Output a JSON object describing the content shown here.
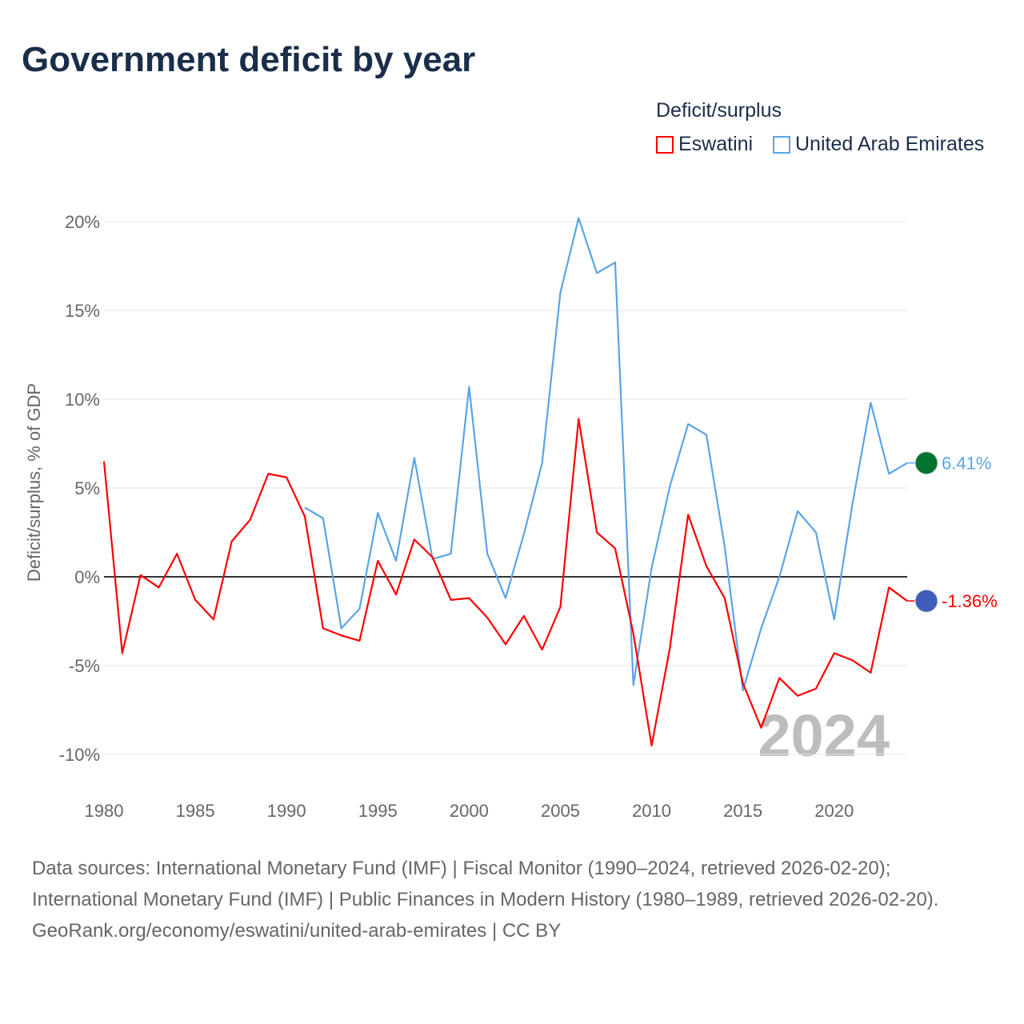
{
  "title": "Government deficit by year",
  "legend_title": "Deficit/surplus",
  "year_watermark": "2024",
  "sources": {
    "line1": "Data sources: International Monetary Fund (IMF) | Fiscal Monitor (1990–2024, retrieved 2026-02-20); International Monetary Fund (IMF) | Public Finances in Modern History (1980–1989, retrieved 2026-02-20).",
    "line2": "GeoRank.org/economy/eswatini/united-arab-emirates | CC BY"
  },
  "chart_data": {
    "type": "line",
    "title": "Government deficit by year",
    "xlabel": "",
    "ylabel": "Deficit/surplus, % of GDP",
    "xlim": [
      1980,
      2024
    ],
    "ylim": [
      -10,
      20
    ],
    "xticks": [
      1980,
      1985,
      1990,
      1995,
      2000,
      2005,
      2010,
      2015,
      2020
    ],
    "xtick_labels": [
      "1980",
      "1985",
      "1990",
      "1995",
      "2000",
      "2005",
      "2010",
      "2015",
      "2020"
    ],
    "yticks": [
      -10,
      -5,
      0,
      5,
      10,
      15,
      20
    ],
    "ytick_labels": [
      "-10%",
      "-5%",
      "0%",
      "5%",
      "10%",
      "15%",
      "20%"
    ],
    "grid": true,
    "legend_position": "top-right",
    "series": [
      {
        "name": "Eswatini",
        "color": "#ff0000",
        "end_label": "-1.36%",
        "x_start": 1980,
        "values": [
          6.5,
          -4.3,
          0.1,
          -0.6,
          1.3,
          -1.3,
          -2.4,
          2.0,
          3.2,
          5.8,
          5.6,
          3.4,
          -2.9,
          -3.3,
          -3.6,
          0.9,
          -1.0,
          2.1,
          1.1,
          -1.3,
          -1.2,
          -2.3,
          -3.8,
          -2.2,
          -4.1,
          -1.7,
          8.9,
          2.5,
          1.6,
          -3.2,
          -9.5,
          -4.0,
          3.5,
          0.6,
          -1.2,
          -6.0,
          -8.5,
          -5.7,
          -6.7,
          -6.3,
          -4.3,
          -4.7,
          -5.4,
          -0.6,
          -1.36
        ]
      },
      {
        "name": "United Arab Emirates",
        "color": "#5ba4e8",
        "end_label": "6.41%",
        "x_start": 1991,
        "values": [
          3.9,
          3.3,
          -2.9,
          -1.8,
          3.6,
          0.9,
          6.7,
          1.0,
          1.3,
          10.7,
          1.3,
          -1.2,
          2.4,
          6.4,
          16.0,
          20.2,
          17.1,
          17.7,
          -6.1,
          0.5,
          5.1,
          8.6,
          8.0,
          1.7,
          -6.4,
          -2.9,
          0.0,
          3.7,
          2.5,
          -2.4,
          4.1,
          9.8,
          5.8,
          6.41
        ]
      }
    ]
  }
}
